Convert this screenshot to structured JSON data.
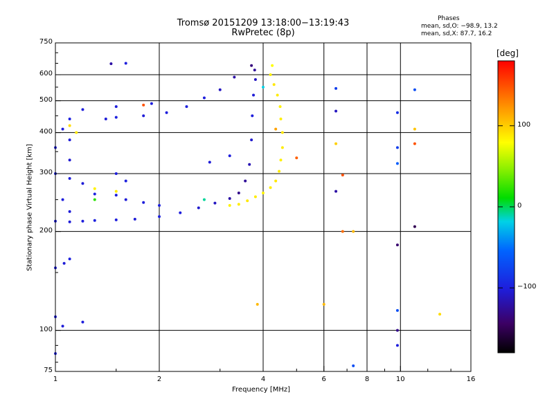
{
  "header": {
    "title": "Tromsø 20151209 13:18:00−13:19:43",
    "subtitle": "RwPretec (8p)"
  },
  "info": {
    "heading": "Phases",
    "line_o": "mean, sd,O: −98.9, 13.2",
    "line_x": "mean, sd,X: 87.7, 16.2"
  },
  "colorbar": {
    "unit": "[deg]",
    "ticks": [
      {
        "value": 100,
        "label": "100"
      },
      {
        "value": 0,
        "label": "0"
      },
      {
        "value": -100,
        "label": "−100"
      }
    ],
    "range": [
      -180,
      180
    ]
  },
  "chart_data": {
    "type": "scatter",
    "xlabel": "Frequency [MHz]",
    "ylabel": "Stationary phase Virtual Height [km]",
    "x_scale": "log",
    "y_scale": "log",
    "xlim": [
      1,
      16
    ],
    "ylim": [
      75,
      750
    ],
    "grid": true,
    "x_ticks": [
      {
        "v": 1,
        "l": "1"
      },
      {
        "v": 2,
        "l": "2"
      },
      {
        "v": 4,
        "l": "4"
      },
      {
        "v": 6,
        "l": "6"
      },
      {
        "v": 8,
        "l": "8"
      },
      {
        "v": 10,
        "l": "10"
      },
      {
        "v": 16,
        "l": "16"
      }
    ],
    "y_ticks": [
      {
        "v": 75,
        "l": "75"
      },
      {
        "v": 100,
        "l": "100"
      },
      {
        "v": 200,
        "l": "200"
      },
      {
        "v": 300,
        "l": "300"
      },
      {
        "v": 400,
        "l": "400"
      },
      {
        "v": 500,
        "l": "500"
      },
      {
        "v": 600,
        "l": "600"
      },
      {
        "v": 750,
        "l": "750"
      }
    ],
    "series": [
      {
        "mode": "O",
        "points": [
          {
            "f": 1.0,
            "h": 215,
            "p": -100
          },
          {
            "f": 1.1,
            "h": 214,
            "p": -102
          },
          {
            "f": 1.2,
            "h": 215,
            "p": -100
          },
          {
            "f": 1.3,
            "h": 216,
            "p": -98
          },
          {
            "f": 1.5,
            "h": 217,
            "p": -100
          },
          {
            "f": 1.7,
            "h": 218,
            "p": -102
          },
          {
            "f": 2.0,
            "h": 222,
            "p": -98
          },
          {
            "f": 2.3,
            "h": 228,
            "p": -100
          },
          {
            "f": 2.6,
            "h": 236,
            "p": -105
          },
          {
            "f": 2.9,
            "h": 244,
            "p": -110
          },
          {
            "f": 3.2,
            "h": 252,
            "p": -120
          },
          {
            "f": 3.4,
            "h": 262,
            "p": -130
          },
          {
            "f": 3.55,
            "h": 285,
            "p": -125
          },
          {
            "f": 3.65,
            "h": 320,
            "p": -115
          },
          {
            "f": 3.7,
            "h": 380,
            "p": -105
          },
          {
            "f": 3.72,
            "h": 450,
            "p": -100
          },
          {
            "f": 3.75,
            "h": 520,
            "p": -102
          },
          {
            "f": 3.8,
            "h": 580,
            "p": -110
          },
          {
            "f": 3.78,
            "h": 620,
            "p": -125
          },
          {
            "f": 3.7,
            "h": 640,
            "p": -135
          },
          {
            "f": 3.3,
            "h": 590,
            "p": -120
          },
          {
            "f": 3.0,
            "h": 540,
            "p": -110
          },
          {
            "f": 2.7,
            "h": 510,
            "p": -100
          },
          {
            "f": 2.4,
            "h": 480,
            "p": -98
          },
          {
            "f": 2.1,
            "h": 460,
            "p": -100
          },
          {
            "f": 1.9,
            "h": 490,
            "p": -100
          },
          {
            "f": 1.8,
            "h": 450,
            "p": -102
          },
          {
            "f": 1.5,
            "h": 445,
            "p": -98
          },
          {
            "f": 1.5,
            "h": 480,
            "p": -100
          },
          {
            "f": 1.4,
            "h": 440,
            "p": -102
          },
          {
            "f": 1.2,
            "h": 470,
            "p": -100
          },
          {
            "f": 1.1,
            "h": 440,
            "p": -98
          },
          {
            "f": 1.05,
            "h": 410,
            "p": -100
          },
          {
            "f": 1.1,
            "h": 380,
            "p": -102
          },
          {
            "f": 1.0,
            "h": 360,
            "p": -100
          },
          {
            "f": 1.1,
            "h": 330,
            "p": -104
          },
          {
            "f": 1.0,
            "h": 300,
            "p": -96
          },
          {
            "f": 1.1,
            "h": 290,
            "p": -100
          },
          {
            "f": 1.2,
            "h": 280,
            "p": -102
          },
          {
            "f": 1.3,
            "h": 260,
            "p": -98
          },
          {
            "f": 1.5,
            "h": 258,
            "p": -100
          },
          {
            "f": 1.6,
            "h": 250,
            "p": -102
          },
          {
            "f": 1.8,
            "h": 245,
            "p": -100
          },
          {
            "f": 2.0,
            "h": 240,
            "p": -98
          },
          {
            "f": 1.05,
            "h": 250,
            "p": -100
          },
          {
            "f": 1.1,
            "h": 230,
            "p": -102
          },
          {
            "f": 1.6,
            "h": 650,
            "p": -100
          },
          {
            "f": 1.45,
            "h": 648,
            "p": -120
          },
          {
            "f": 1.0,
            "h": 155,
            "p": -100
          },
          {
            "f": 1.06,
            "h": 160,
            "p": -102
          },
          {
            "f": 1.1,
            "h": 165,
            "p": -98
          },
          {
            "f": 1.0,
            "h": 110,
            "p": -100
          },
          {
            "f": 1.05,
            "h": 103,
            "p": -102
          },
          {
            "f": 1.2,
            "h": 106,
            "p": -100
          },
          {
            "f": 1.0,
            "h": 85,
            "p": -98
          },
          {
            "f": 1.5,
            "h": 300,
            "p": -100
          },
          {
            "f": 1.6,
            "h": 285,
            "p": -98
          },
          {
            "f": 2.8,
            "h": 325,
            "p": -102
          },
          {
            "f": 3.2,
            "h": 340,
            "p": -100
          }
        ]
      },
      {
        "mode": "X",
        "points": [
          {
            "f": 3.2,
            "h": 240,
            "p": 85
          },
          {
            "f": 3.4,
            "h": 242,
            "p": 88
          },
          {
            "f": 3.6,
            "h": 248,
            "p": 90
          },
          {
            "f": 3.8,
            "h": 255,
            "p": 88
          },
          {
            "f": 4.0,
            "h": 262,
            "p": 85
          },
          {
            "f": 4.2,
            "h": 272,
            "p": 87
          },
          {
            "f": 4.35,
            "h": 285,
            "p": 90
          },
          {
            "f": 4.45,
            "h": 305,
            "p": 88
          },
          {
            "f": 4.5,
            "h": 330,
            "p": 86
          },
          {
            "f": 4.55,
            "h": 360,
            "p": 88
          },
          {
            "f": 4.55,
            "h": 400,
            "p": 90
          },
          {
            "f": 4.5,
            "h": 440,
            "p": 87
          },
          {
            "f": 4.48,
            "h": 480,
            "p": 85
          },
          {
            "f": 4.4,
            "h": 520,
            "p": 88
          },
          {
            "f": 4.3,
            "h": 560,
            "p": 90
          },
          {
            "f": 4.2,
            "h": 600,
            "p": 86
          },
          {
            "f": 4.25,
            "h": 640,
            "p": 80
          },
          {
            "f": 4.35,
            "h": 410,
            "p": 120
          },
          {
            "f": 1.1,
            "h": 420,
            "p": 95
          },
          {
            "f": 1.15,
            "h": 400,
            "p": 90
          },
          {
            "f": 1.3,
            "h": 270,
            "p": 85
          },
          {
            "f": 1.5,
            "h": 265,
            "p": 88
          },
          {
            "f": 6.0,
            "h": 120,
            "p": 110
          },
          {
            "f": 6.5,
            "h": 370,
            "p": 100
          },
          {
            "f": 7.3,
            "h": 200,
            "p": 110
          },
          {
            "f": 11.0,
            "h": 410,
            "p": 105
          },
          {
            "f": 13.0,
            "h": 112,
            "p": 95
          },
          {
            "f": 3.85,
            "h": 120,
            "p": 110
          }
        ]
      },
      {
        "mode": "other",
        "points": [
          {
            "f": 6.5,
            "h": 545,
            "p": -80
          },
          {
            "f": 6.5,
            "h": 465,
            "p": -110
          },
          {
            "f": 6.5,
            "h": 265,
            "p": -120
          },
          {
            "f": 6.8,
            "h": 200,
            "p": 140
          },
          {
            "f": 6.8,
            "h": 297,
            "p": 150
          },
          {
            "f": 7.3,
            "h": 78,
            "p": -70
          },
          {
            "f": 9.8,
            "h": 460,
            "p": -90
          },
          {
            "f": 9.8,
            "h": 360,
            "p": -80
          },
          {
            "f": 9.8,
            "h": 322,
            "p": -60
          },
          {
            "f": 9.8,
            "h": 182,
            "p": -140
          },
          {
            "f": 9.8,
            "h": 115,
            "p": -70
          },
          {
            "f": 9.8,
            "h": 90,
            "p": -100
          },
          {
            "f": 9.8,
            "h": 100,
            "p": -130
          },
          {
            "f": 11.0,
            "h": 540,
            "p": -70
          },
          {
            "f": 11.0,
            "h": 370,
            "p": 150
          },
          {
            "f": 11.0,
            "h": 207,
            "p": -150
          },
          {
            "f": 5.0,
            "h": 335,
            "p": 145
          },
          {
            "f": 4.0,
            "h": 550,
            "p": -20
          },
          {
            "f": 1.3,
            "h": 250,
            "p": 20
          },
          {
            "f": 2.7,
            "h": 250,
            "p": -10
          },
          {
            "f": 1.8,
            "h": 485,
            "p": 150
          }
        ]
      }
    ]
  }
}
